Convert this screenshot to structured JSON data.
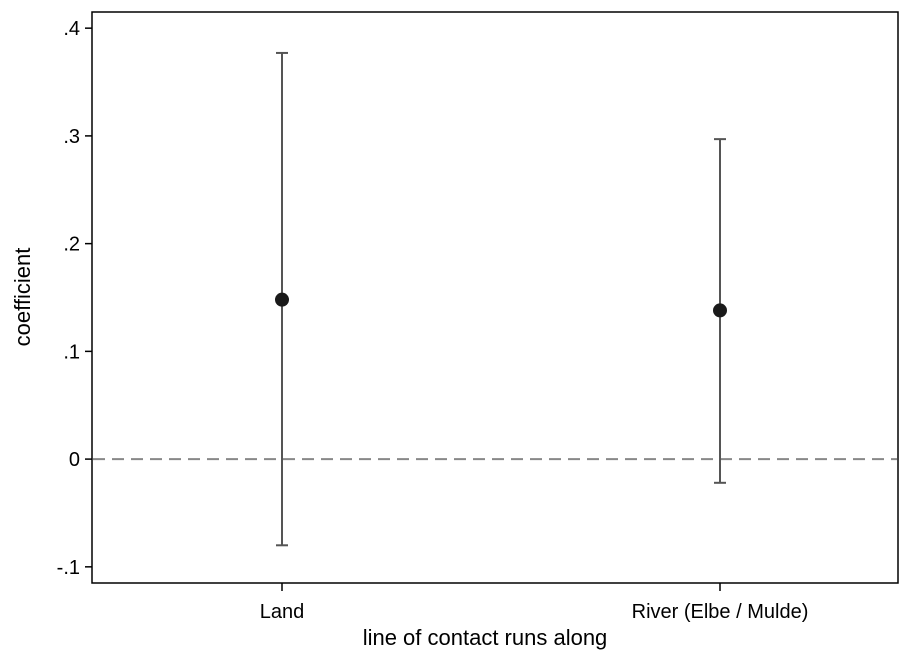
{
  "chart_data": {
    "type": "scatter",
    "subtype": "coefficient-plot-with-confidence-intervals",
    "xlabel": "line of contact runs along",
    "ylabel": "coefficient",
    "categories": [
      "Land",
      "River (Elbe / Mulde)"
    ],
    "series": [
      {
        "points": [
          {
            "category": "Land",
            "estimate": 0.148,
            "ci_low": -0.08,
            "ci_high": 0.377
          },
          {
            "category": "River (Elbe / Mulde)",
            "estimate": 0.138,
            "ci_low": -0.022,
            "ci_high": 0.297
          }
        ]
      }
    ],
    "yticks": [
      {
        "value": -0.1,
        "label": "-.1"
      },
      {
        "value": 0,
        "label": "0"
      },
      {
        "value": 0.1,
        "label": ".1"
      },
      {
        "value": 0.2,
        "label": ".2"
      },
      {
        "value": 0.3,
        "label": ".3"
      },
      {
        "value": 0.4,
        "label": ".4"
      }
    ],
    "ylim": [
      -0.115,
      0.415
    ],
    "reference_line": {
      "y": 0,
      "style": "dashed",
      "color": "#888888"
    },
    "grid": false,
    "legend": "none",
    "colors": {
      "marker": "#1a1a1a",
      "ci_line": "#555555",
      "axis": "#000000"
    }
  }
}
